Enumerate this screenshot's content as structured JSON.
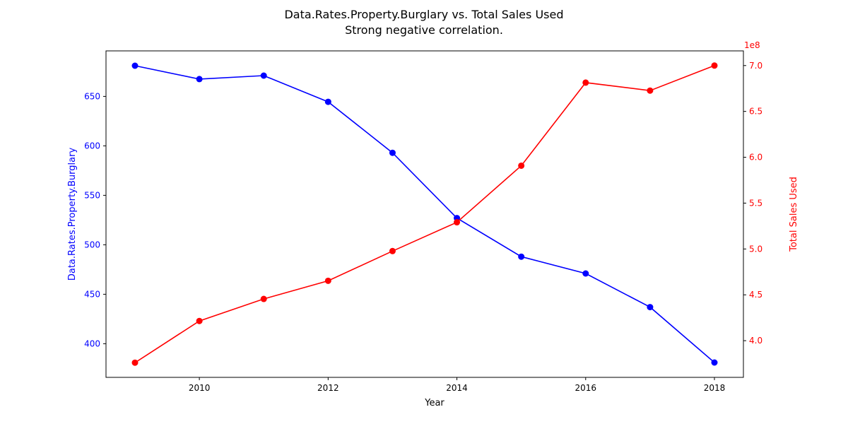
{
  "chart_data": {
    "type": "line",
    "title": "Data.Rates.Property.Burglary vs. Total Sales Used",
    "subtitle": "Strong negative correlation.",
    "xlabel": "Year",
    "x": [
      2009,
      2010,
      2011,
      2012,
      2013,
      2014,
      2015,
      2016,
      2017,
      2018
    ],
    "xlim": [
      2008.55,
      2018.45
    ],
    "xticks": [
      2010,
      2012,
      2014,
      2016,
      2018
    ],
    "grid": false,
    "series": [
      {
        "name": "Data.Rates.Property.Burglary",
        "axis": "left",
        "color": "#0000ff",
        "values": [
          681,
          667.5,
          671,
          644.5,
          593,
          527,
          488,
          471,
          437,
          381
        ]
      },
      {
        "name": "Total Sales Used",
        "axis": "right",
        "color": "#ff0000",
        "values": [
          376000000,
          421500000,
          445500000,
          465300000,
          497700000,
          529100000,
          590800000,
          681400000,
          672700000,
          700000000
        ]
      }
    ],
    "y_left": {
      "label": "Data.Rates.Property.Burglary",
      "ylim": [
        366,
        696
      ],
      "ticks": [
        400,
        450,
        500,
        550,
        600,
        650
      ],
      "tick_labels": [
        "400",
        "450",
        "500",
        "550",
        "600",
        "650"
      ],
      "color": "#0000ff"
    },
    "y_right": {
      "label": "Total Sales Used",
      "ylim": [
        360000000,
        716000000
      ],
      "ticks": [
        400000000,
        450000000,
        500000000,
        550000000,
        600000000,
        650000000,
        700000000
      ],
      "tick_labels": [
        "4.0",
        "4.5",
        "5.0",
        "5.5",
        "6.0",
        "6.5",
        "7.0"
      ],
      "offset_text": "1e8",
      "color": "#ff0000"
    }
  }
}
